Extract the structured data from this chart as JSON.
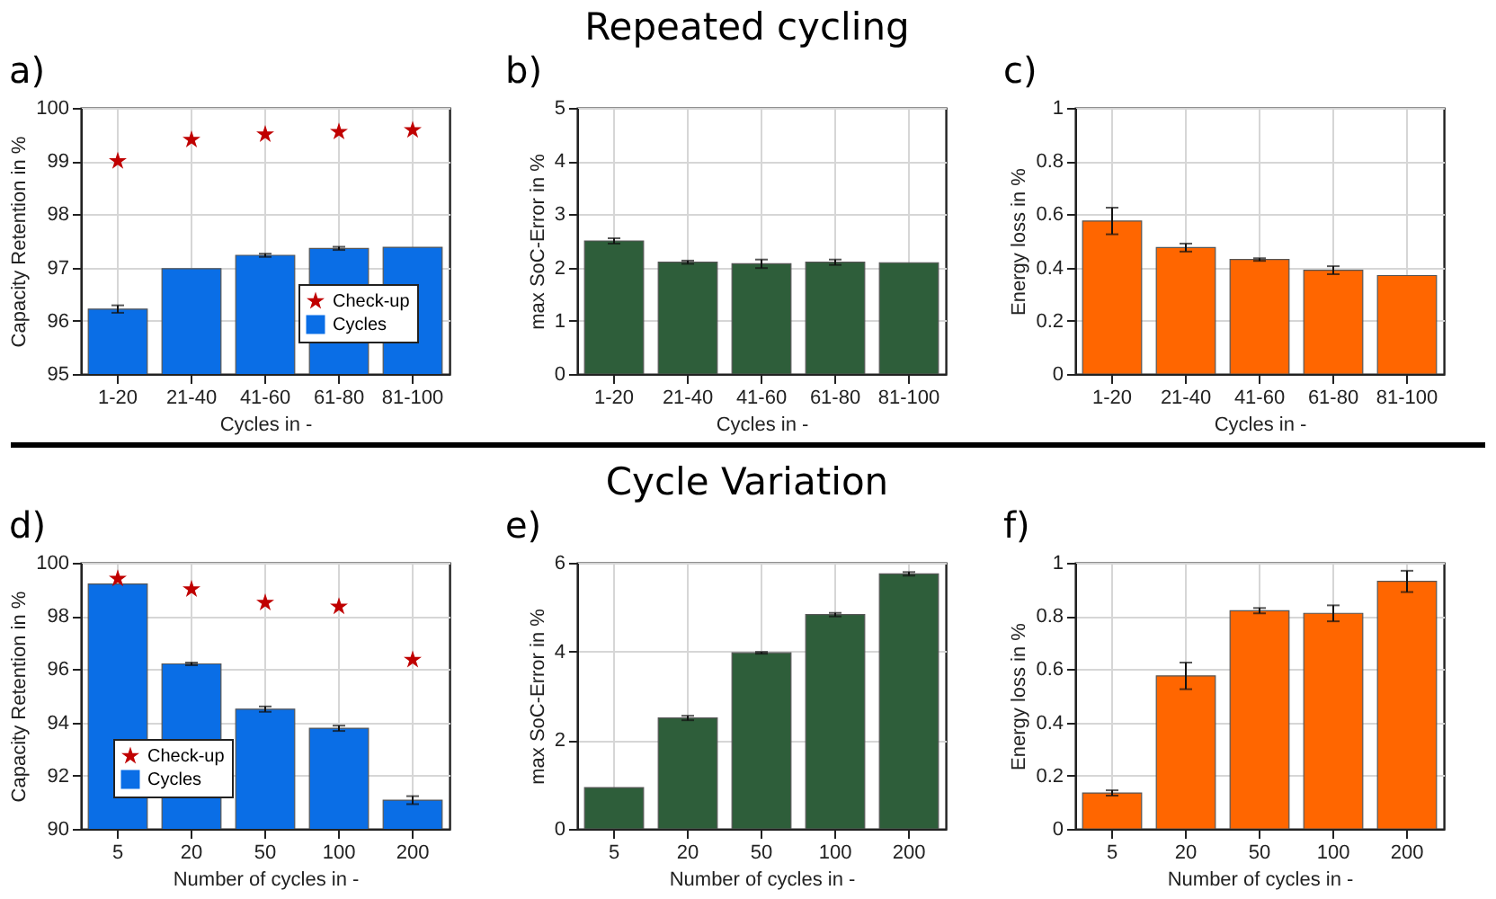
{
  "chart_data": [
    {
      "type": "bar",
      "title": "a)",
      "xlabel": "Cycles in -",
      "ylabel": "Capacity Retention in %",
      "categories": [
        "1-20",
        "21-40",
        "41-60",
        "61-80",
        "81-100"
      ],
      "ylim": [
        95,
        100
      ],
      "yticks": [
        95,
        96,
        97,
        98,
        99,
        100
      ],
      "grid": true,
      "legend": "bottom right",
      "series": [
        {
          "name": "Check-up",
          "type": "scatter",
          "marker": "star",
          "color": "#c00000",
          "x": [
            "1-20",
            "21-40",
            "41-60",
            "61-80",
            "81-100"
          ],
          "values": [
            99.0,
            99.4,
            99.5,
            99.55,
            99.58
          ]
        },
        {
          "name": "Cycles",
          "type": "bar",
          "color": "#0a6ee6",
          "values": [
            96.22,
            96.98,
            97.23,
            97.36,
            97.38
          ],
          "errors": [
            0.07,
            null,
            0.03,
            0.03,
            null
          ]
        }
      ]
    },
    {
      "type": "bar",
      "title": "b)",
      "annotations": [
        "Repeated cycling"
      ],
      "xlabel": "Cycles in -",
      "ylabel": "max SoC-Error in %",
      "categories": [
        "1-20",
        "21-40",
        "41-60",
        "61-80",
        "81-100"
      ],
      "ylim": [
        0,
        5
      ],
      "yticks": [
        0,
        1,
        2,
        3,
        4,
        5
      ],
      "grid": true,
      "series": [
        {
          "type": "bar",
          "color": "#2e5e3a",
          "values": [
            2.5,
            2.1,
            2.07,
            2.1,
            2.09
          ],
          "errors": [
            0.05,
            0.03,
            0.08,
            0.05,
            null
          ]
        }
      ]
    },
    {
      "type": "bar",
      "title": "c)",
      "xlabel": "Cycles in -",
      "ylabel": "Energy loss in %",
      "categories": [
        "1-20",
        "21-40",
        "41-60",
        "61-80",
        "81-100"
      ],
      "ylim": [
        0,
        1
      ],
      "yticks": [
        0,
        0.2,
        0.4,
        0.6,
        0.8,
        1
      ],
      "grid": true,
      "series": [
        {
          "type": "bar",
          "color": "#ff6600",
          "values": [
            0.575,
            0.475,
            0.43,
            0.39,
            0.37
          ],
          "errors": [
            0.05,
            0.015,
            0.005,
            0.015,
            null
          ]
        }
      ]
    },
    {
      "type": "bar",
      "title": "d)",
      "xlabel": "Number of cycles in -",
      "ylabel": "Capacity Retention in %",
      "categories": [
        "5",
        "20",
        "50",
        "100",
        "200"
      ],
      "ylim": [
        90,
        100
      ],
      "yticks": [
        90,
        92,
        94,
        96,
        98,
        100
      ],
      "grid": true,
      "legend": "bottom left",
      "series": [
        {
          "name": "Check-up",
          "type": "scatter",
          "marker": "star",
          "color": "#c00000",
          "x": [
            "5",
            "20",
            "50",
            "100",
            "200"
          ],
          "values": [
            99.4,
            99.0,
            98.5,
            98.35,
            96.35
          ]
        },
        {
          "name": "Cycles",
          "type": "bar",
          "color": "#0a6ee6",
          "values": [
            99.2,
            96.2,
            94.5,
            93.78,
            91.08
          ],
          "errors": [
            null,
            0.05,
            0.1,
            0.1,
            0.15
          ]
        }
      ]
    },
    {
      "type": "bar",
      "title": "e)",
      "annotations": [
        "Cycle Variation"
      ],
      "xlabel": "Number of cycles in -",
      "ylabel": "max SoC-Error in %",
      "categories": [
        "5",
        "20",
        "50",
        "100",
        "200"
      ],
      "ylim": [
        0,
        6
      ],
      "yticks": [
        0,
        2,
        4,
        6
      ],
      "grid": true,
      "series": [
        {
          "type": "bar",
          "color": "#2e5e3a",
          "values": [
            0.93,
            2.5,
            3.97,
            4.83,
            5.75
          ],
          "errors": [
            null,
            0.05,
            0.02,
            0.04,
            0.04
          ]
        }
      ]
    },
    {
      "type": "bar",
      "title": "f)",
      "xlabel": "Number of cycles in -",
      "ylabel": "Energy loss in %",
      "categories": [
        "5",
        "20",
        "50",
        "100",
        "200"
      ],
      "ylim": [
        0,
        1
      ],
      "yticks": [
        0,
        0.2,
        0.4,
        0.6,
        0.8,
        1
      ],
      "grid": true,
      "series": [
        {
          "type": "bar",
          "color": "#ff6600",
          "values": [
            0.135,
            0.575,
            0.82,
            0.81,
            0.93
          ],
          "errors": [
            0.01,
            0.05,
            0.01,
            0.03,
            0.04
          ]
        }
      ]
    }
  ]
}
